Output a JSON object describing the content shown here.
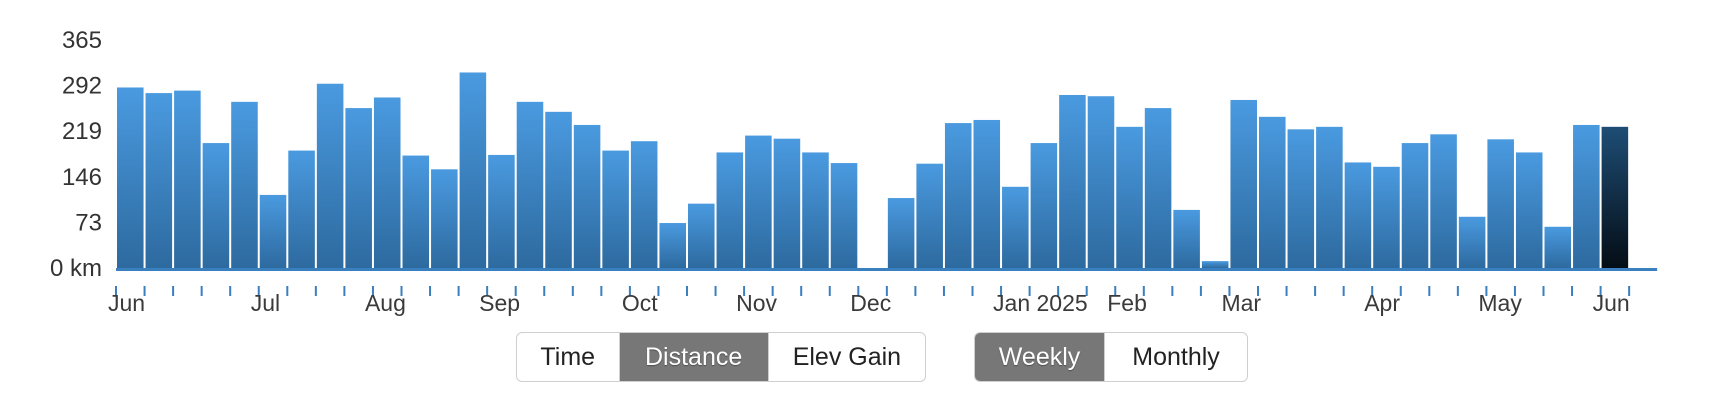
{
  "chart_data": {
    "type": "bar",
    "unit": "km",
    "ylim": [
      0,
      365
    ],
    "yticks": [
      0,
      73,
      146,
      219,
      292,
      365
    ],
    "ytick_labels": [
      "0 km",
      "73",
      "146",
      "219",
      "292",
      "365"
    ],
    "x_labels": [
      "Jun",
      "Jul",
      "Aug",
      "Sep",
      "Oct",
      "Nov",
      "Dec",
      "Jan 2025",
      "Feb",
      "Mar",
      "Apr",
      "May",
      "Jun"
    ],
    "values": [
      289,
      280,
      284,
      200,
      266,
      117,
      188,
      295,
      256,
      273,
      180,
      158,
      313,
      181,
      266,
      250,
      229,
      188,
      203,
      72,
      103,
      185,
      212,
      207,
      185,
      168,
      0,
      112,
      167,
      232,
      237,
      130,
      200,
      277,
      275,
      226,
      256,
      93,
      11,
      269,
      242,
      222,
      226,
      169,
      162,
      200,
      214,
      82,
      206,
      185,
      66,
      229,
      226
    ],
    "highlight_index": 52,
    "grid": false,
    "legend": "none"
  },
  "colors": {
    "bar_top": "#4a9ae0",
    "bar_bottom": "#2d6a9f",
    "highlight_top": "#1e4d75",
    "highlight_bottom": "#040d15",
    "axis": "#3a7fc0"
  },
  "controls": {
    "metric": [
      {
        "label": "Time",
        "active": false
      },
      {
        "label": "Distance",
        "active": true
      },
      {
        "label": "Elev Gain",
        "active": false
      }
    ],
    "period": [
      {
        "label": "Weekly",
        "active": true
      },
      {
        "label": "Monthly",
        "active": false
      }
    ]
  }
}
